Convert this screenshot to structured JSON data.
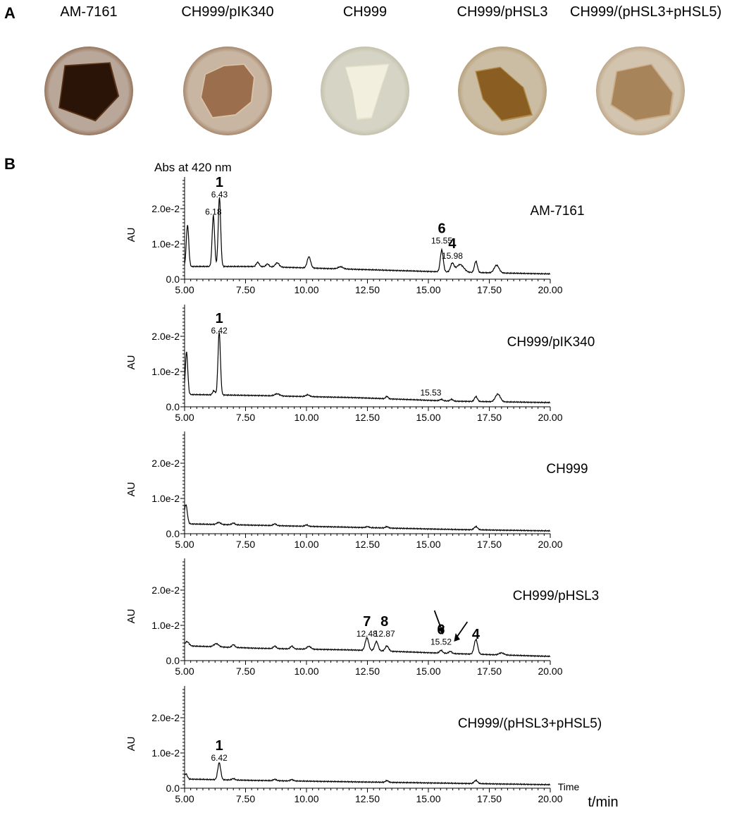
{
  "panel_a": {
    "letter": "A",
    "colonies": [
      {
        "label": "AM-7161",
        "bg": "#b9a89a",
        "ring": "#7a4a2a",
        "body": "#2a1408",
        "edge": "#5a3318",
        "icon": "colony-dark-brown"
      },
      {
        "label": "CH999/pIK340",
        "bg": "#c9b6a2",
        "ring": "#8a6244",
        "body": "#9b6f4e",
        "edge": "#d9c2a8",
        "icon": "colony-light-brown"
      },
      {
        "label": "CH999",
        "bg": "#d6d4c4",
        "ring": "#b5b29c",
        "body": "#f2efde",
        "edge": "#e6e2cc",
        "icon": "colony-white"
      },
      {
        "label": "CH999/pHSL3",
        "bg": "#cbbda4",
        "ring": "#a88a5c",
        "body": "#8a5e22",
        "edge": "#b28a4a",
        "icon": "colony-ochre"
      },
      {
        "label": "CH999/(pHSL3+pHSL5)",
        "bg": "#d2c4ae",
        "ring": "#b09270",
        "body": "#a8845a",
        "edge": "#c9ad88",
        "icon": "colony-tan"
      }
    ]
  },
  "panel_b": {
    "letter": "B",
    "abs_label": "Abs at 420 nm",
    "time_label": "Time",
    "xunit_label": "t/min"
  },
  "chart_data": [
    {
      "type": "line",
      "title": "AM-7161",
      "ylabel": "AU",
      "xlim": [
        5.0,
        20.0
      ],
      "ylim": [
        0,
        0.025
      ],
      "xticks": [
        "5.00",
        "7.50",
        "10.00",
        "12.50",
        "15.00",
        "17.50",
        "20.00"
      ],
      "yticks": [
        "0.0",
        "1.0e-2",
        "2.0e-2"
      ],
      "baseline": [
        [
          5.0,
          0.0036
        ],
        [
          8.0,
          0.0036
        ],
        [
          12.0,
          0.0028
        ],
        [
          16.0,
          0.002
        ],
        [
          20.0,
          0.0015
        ]
      ],
      "peaks": [
        [
          5.12,
          0.0118,
          0.05
        ],
        [
          6.18,
          0.0145,
          0.05
        ],
        [
          6.43,
          0.0196,
          0.05
        ],
        [
          8.0,
          0.0012,
          0.06
        ],
        [
          8.4,
          0.0008,
          0.06
        ],
        [
          8.8,
          0.0012,
          0.08
        ],
        [
          10.1,
          0.0032,
          0.07
        ],
        [
          11.4,
          0.0006,
          0.1
        ],
        [
          15.55,
          0.0062,
          0.06
        ],
        [
          15.98,
          0.0024,
          0.07
        ],
        [
          16.3,
          0.0022,
          0.15
        ],
        [
          16.95,
          0.0032,
          0.06
        ],
        [
          17.8,
          0.0022,
          0.1
        ]
      ],
      "peak_labels": [
        {
          "time": "6.18",
          "x": 6.18,
          "y": 0.0183
        },
        {
          "time": "6.43",
          "x": 6.43,
          "y": 0.0232,
          "compound": "1"
        },
        {
          "time": "15.55",
          "x": 15.55,
          "y": 0.0101,
          "compound": "6"
        },
        {
          "time": "15.98",
          "x": 15.98,
          "y": 0.0058,
          "compound": "4"
        }
      ]
    },
    {
      "type": "line",
      "title": "CH999/pIK340",
      "ylabel": "AU",
      "xlim": [
        5.0,
        20.0
      ],
      "ylim": [
        0,
        0.025
      ],
      "xticks": [
        "5.00",
        "7.50",
        "10.00",
        "12.50",
        "15.00",
        "17.50",
        "20.00"
      ],
      "yticks": [
        "0.0",
        "1.0e-2",
        "2.0e-2"
      ],
      "baseline": [
        [
          5.0,
          0.0035
        ],
        [
          8.0,
          0.0032
        ],
        [
          12.0,
          0.0026
        ],
        [
          16.0,
          0.0016
        ],
        [
          20.0,
          0.0012
        ]
      ],
      "peaks": [
        [
          5.08,
          0.012,
          0.05
        ],
        [
          6.2,
          0.0012,
          0.05
        ],
        [
          6.42,
          0.0178,
          0.05
        ],
        [
          8.8,
          0.0006,
          0.1
        ],
        [
          10.05,
          0.0005,
          0.08
        ],
        [
          13.3,
          0.0007,
          0.05
        ],
        [
          15.53,
          0.0004,
          0.06
        ],
        [
          15.95,
          0.0005,
          0.06
        ],
        [
          16.95,
          0.0014,
          0.06
        ],
        [
          17.85,
          0.0022,
          0.1
        ]
      ],
      "peak_labels": [
        {
          "time": "6.42",
          "x": 6.42,
          "y": 0.0208,
          "compound": "1"
        },
        {
          "time": "15.53",
          "x": 15.1,
          "y": 0.0032
        }
      ]
    },
    {
      "type": "line",
      "title": "CH999",
      "ylabel": "AU",
      "xlim": [
        5.0,
        20.0
      ],
      "ylim": [
        0,
        0.025
      ],
      "xticks": [
        "5.00",
        "7.50",
        "10.00",
        "12.50",
        "15.00",
        "17.50",
        "20.00"
      ],
      "yticks": [
        "0.0",
        "1.0e-2",
        "2.0e-2"
      ],
      "baseline": [
        [
          5.0,
          0.0028
        ],
        [
          8.0,
          0.0024
        ],
        [
          12.0,
          0.0018
        ],
        [
          16.0,
          0.0012
        ],
        [
          20.0,
          0.0008
        ]
      ],
      "peaks": [
        [
          5.05,
          0.0055,
          0.06
        ],
        [
          6.4,
          0.0006,
          0.08
        ],
        [
          7.0,
          0.0005,
          0.06
        ],
        [
          8.7,
          0.0005,
          0.06
        ],
        [
          10.0,
          0.0004,
          0.06
        ],
        [
          12.5,
          0.0003,
          0.06
        ],
        [
          13.3,
          0.0004,
          0.06
        ],
        [
          16.95,
          0.0009,
          0.07
        ]
      ],
      "peak_labels": []
    },
    {
      "type": "line",
      "title": "CH999/pHSL3",
      "ylabel": "AU",
      "xlim": [
        5.0,
        20.0
      ],
      "ylim": [
        0,
        0.025
      ],
      "xticks": [
        "5.00",
        "7.50",
        "10.00",
        "12.50",
        "15.00",
        "17.50",
        "20.00"
      ],
      "yticks": [
        "0.0",
        "1.0e-2",
        "2.0e-2"
      ],
      "baseline": [
        [
          5.0,
          0.0042
        ],
        [
          8.0,
          0.0035
        ],
        [
          12.0,
          0.003
        ],
        [
          16.0,
          0.002
        ],
        [
          20.0,
          0.0012
        ]
      ],
      "peaks": [
        [
          5.1,
          0.0012,
          0.08
        ],
        [
          6.3,
          0.0009,
          0.1
        ],
        [
          7.0,
          0.0008,
          0.06
        ],
        [
          8.7,
          0.0007,
          0.06
        ],
        [
          9.4,
          0.0008,
          0.06
        ],
        [
          10.1,
          0.0008,
          0.08
        ],
        [
          12.48,
          0.0036,
          0.07
        ],
        [
          12.87,
          0.0026,
          0.07
        ],
        [
          13.3,
          0.0015,
          0.07
        ],
        [
          15.52,
          0.0008,
          0.06
        ],
        [
          15.9,
          0.0006,
          0.06
        ],
        [
          16.95,
          0.0042,
          0.07
        ],
        [
          18.0,
          0.0006,
          0.1
        ]
      ],
      "peak_labels": [
        {
          "time": "12.48",
          "x": 12.48,
          "y": 0.0068,
          "compound": "7"
        },
        {
          "time": "12.87",
          "x": 13.2,
          "y": 0.0068,
          "compound": "8"
        },
        {
          "time": "15.52",
          "x": 15.52,
          "y": 0.0045,
          "compound": "6"
        },
        {
          "compound": "4",
          "x": 16.95,
          "y": 0.0062
        }
      ]
    },
    {
      "type": "line",
      "title": "CH999/(pHSL3+pHSL5)",
      "ylabel": "AU",
      "xlim": [
        5.0,
        20.0
      ],
      "ylim": [
        0,
        0.025
      ],
      "xticks": [
        "5.00",
        "7.50",
        "10.00",
        "12.50",
        "15.00",
        "17.50",
        "20.00"
      ],
      "yticks": [
        "0.0",
        "1.0e-2",
        "2.0e-2"
      ],
      "baseline": [
        [
          5.0,
          0.0026
        ],
        [
          8.0,
          0.0022
        ],
        [
          12.0,
          0.0018
        ],
        [
          16.0,
          0.0014
        ],
        [
          20.0,
          0.001
        ]
      ],
      "peaks": [
        [
          5.05,
          0.0015,
          0.06
        ],
        [
          6.42,
          0.0048,
          0.06
        ],
        [
          7.0,
          0.0004,
          0.06
        ],
        [
          8.7,
          0.0004,
          0.06
        ],
        [
          9.4,
          0.0004,
          0.06
        ],
        [
          13.3,
          0.0005,
          0.06
        ],
        [
          16.95,
          0.0009,
          0.07
        ]
      ],
      "peak_labels": [
        {
          "time": "6.42",
          "x": 6.42,
          "y": 0.0078,
          "compound": "1"
        }
      ]
    }
  ]
}
